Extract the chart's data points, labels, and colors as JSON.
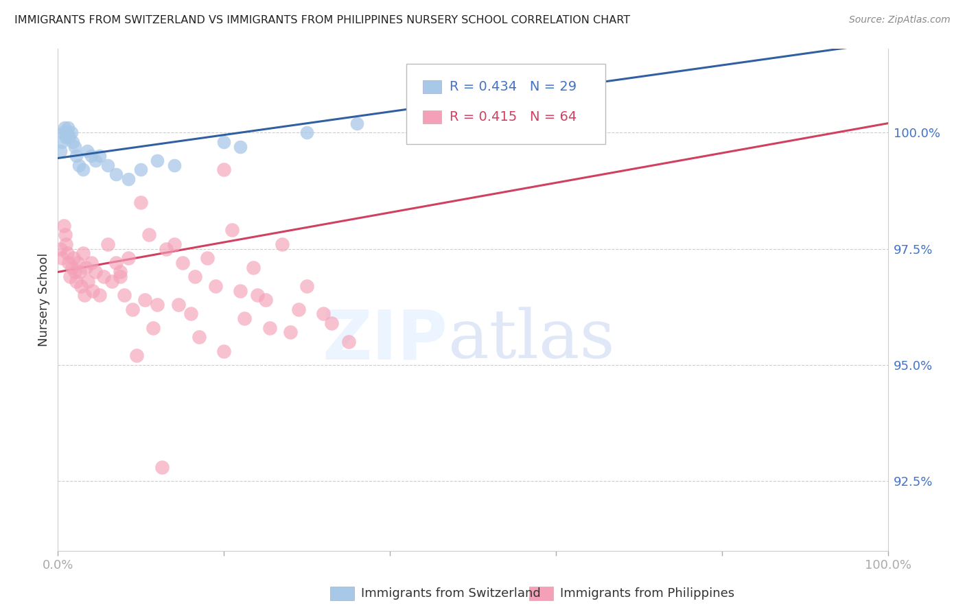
{
  "title": "IMMIGRANTS FROM SWITZERLAND VS IMMIGRANTS FROM PHILIPPINES NURSERY SCHOOL CORRELATION CHART",
  "source": "Source: ZipAtlas.com",
  "ylabel": "Nursery School",
  "xlim": [
    0,
    100
  ],
  "ylim": [
    91.0,
    101.8
  ],
  "yticks": [
    92.5,
    95.0,
    97.5,
    100.0
  ],
  "ytick_labels": [
    "92.5%",
    "95.0%",
    "97.5%",
    "100.0%"
  ],
  "legend_blue_r": "R = 0.434",
  "legend_blue_n": "N = 29",
  "legend_pink_r": "R = 0.415",
  "legend_pink_n": "N = 64",
  "blue_color": "#a8c8e8",
  "pink_color": "#f4a0b8",
  "blue_line_color": "#3060a0",
  "pink_line_color": "#d04060",
  "legend_r_color_blue": "#4472c4",
  "legend_r_color_pink": "#d04060",
  "scatter_blue_x": [
    0.3,
    0.5,
    0.6,
    0.8,
    0.9,
    1.0,
    1.1,
    1.2,
    1.4,
    1.6,
    1.8,
    2.0,
    2.2,
    2.5,
    3.0,
    3.5,
    4.0,
    4.5,
    5.0,
    6.0,
    7.0,
    8.5,
    10.0,
    12.0,
    14.0,
    20.0,
    22.0,
    30.0,
    36.0
  ],
  "scatter_blue_y": [
    99.6,
    99.8,
    100.0,
    100.1,
    100.0,
    99.9,
    100.0,
    100.1,
    99.9,
    100.0,
    99.8,
    99.7,
    99.5,
    99.3,
    99.2,
    99.6,
    99.5,
    99.4,
    99.5,
    99.3,
    99.1,
    99.0,
    99.2,
    99.4,
    99.3,
    99.8,
    99.7,
    100.0,
    100.2
  ],
  "scatter_pink_x": [
    0.3,
    0.5,
    0.7,
    0.9,
    1.0,
    1.1,
    1.3,
    1.5,
    1.7,
    1.9,
    2.0,
    2.2,
    2.4,
    2.6,
    2.8,
    3.0,
    3.2,
    3.4,
    3.6,
    4.0,
    4.2,
    4.5,
    5.0,
    5.5,
    6.0,
    6.5,
    7.0,
    7.5,
    8.0,
    8.5,
    9.0,
    10.0,
    11.0,
    12.0,
    13.0,
    14.0,
    15.0,
    16.5,
    18.0,
    19.0,
    20.0,
    21.0,
    22.0,
    23.5,
    25.0,
    27.0,
    29.0,
    30.0,
    32.0,
    33.0,
    35.0,
    20.0,
    22.5,
    25.5,
    28.0,
    14.5,
    16.0,
    17.0,
    12.5,
    10.5,
    9.5,
    11.5,
    7.5,
    24.0
  ],
  "scatter_pink_y": [
    97.5,
    97.3,
    98.0,
    97.8,
    97.6,
    97.4,
    97.2,
    96.9,
    97.1,
    97.3,
    97.0,
    96.8,
    97.2,
    97.0,
    96.7,
    97.4,
    96.5,
    97.1,
    96.8,
    97.2,
    96.6,
    97.0,
    96.5,
    96.9,
    97.6,
    96.8,
    97.2,
    97.0,
    96.5,
    97.3,
    96.2,
    98.5,
    97.8,
    96.3,
    97.5,
    97.6,
    97.2,
    96.9,
    97.3,
    96.7,
    99.2,
    97.9,
    96.6,
    97.1,
    96.4,
    97.6,
    96.2,
    96.7,
    96.1,
    95.9,
    95.5,
    95.3,
    96.0,
    95.8,
    95.7,
    96.3,
    96.1,
    95.6,
    92.8,
    96.4,
    95.2,
    95.8,
    96.9,
    96.5
  ]
}
